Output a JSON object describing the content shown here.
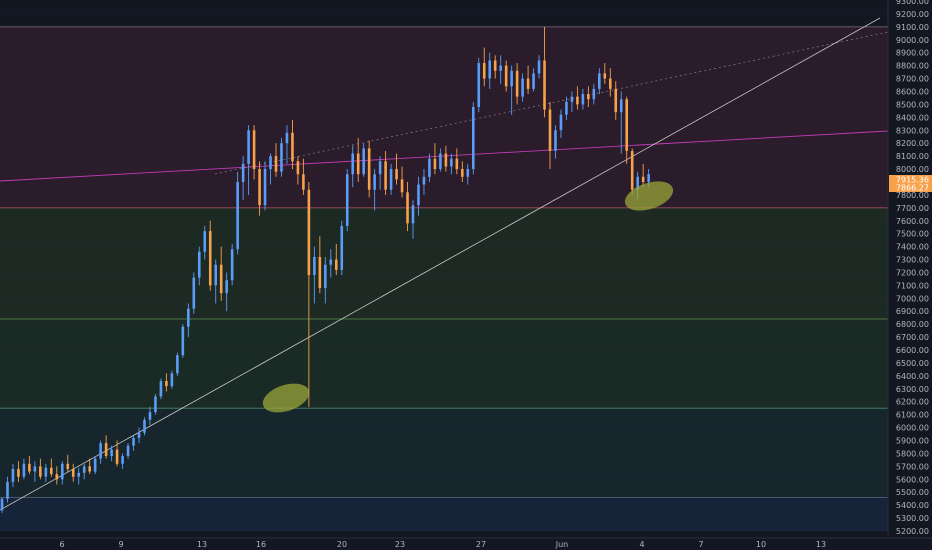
{
  "chart_data": {
    "type": "candlestick",
    "title": "",
    "xlabel": "",
    "ylabel": "",
    "ylim": [
      5200,
      9300
    ],
    "x_tick_labels": [
      "6",
      "9",
      "13",
      "16",
      "20",
      "23",
      "27",
      "Jun",
      "4",
      "7",
      "10",
      "13"
    ],
    "y_ticks": [
      5200,
      5300,
      5400,
      5500,
      5600,
      5700,
      5800,
      5900,
      6000,
      6100,
      6200,
      6300,
      6400,
      6500,
      6600,
      6700,
      6800,
      6900,
      7000,
      7100,
      7200,
      7300,
      7400,
      7500,
      7600,
      7700,
      7800,
      7900,
      8000,
      8100,
      8200,
      8300,
      8400,
      8500,
      8600,
      8700,
      8800,
      8900,
      9000,
      9100,
      9200,
      9300
    ],
    "current_price_tags": [
      "7915.36",
      "7866.27"
    ],
    "zones": [
      {
        "from": 7700,
        "to": 9100,
        "color": "#2a1c2a"
      },
      {
        "from": 6840,
        "to": 7700,
        "color": "#1d2a23"
      },
      {
        "from": 6150,
        "to": 6840,
        "color": "#1a2a24"
      },
      {
        "from": 5460,
        "to": 6150,
        "color": "#17262d"
      },
      {
        "from": 5200,
        "to": 5460,
        "color": "#172339"
      }
    ],
    "levels": [
      9100,
      7700,
      6840,
      6150,
      5460
    ],
    "colors": {
      "up": "#5b9cf6",
      "down": "#f7a14a",
      "trend": "#c8c8c8",
      "magenta": "#c23bb6",
      "highlight": "#9aa63a"
    },
    "candles": [
      [
        0,
        5360,
        5460,
        5340,
        5450
      ],
      [
        1,
        5450,
        5620,
        5420,
        5580
      ],
      [
        2,
        5580,
        5720,
        5540,
        5680
      ],
      [
        3,
        5680,
        5740,
        5580,
        5620
      ],
      [
        4,
        5620,
        5760,
        5600,
        5720
      ],
      [
        5,
        5720,
        5780,
        5640,
        5660
      ],
      [
        6,
        5660,
        5740,
        5580,
        5700
      ],
      [
        7,
        5700,
        5760,
        5600,
        5620
      ],
      [
        8,
        5620,
        5720,
        5580,
        5690
      ],
      [
        9,
        5690,
        5760,
        5620,
        5640
      ],
      [
        10,
        5640,
        5700,
        5560,
        5600
      ],
      [
        11,
        5600,
        5740,
        5560,
        5720
      ],
      [
        12,
        5720,
        5790,
        5660,
        5680
      ],
      [
        13,
        5680,
        5720,
        5580,
        5620
      ],
      [
        14,
        5620,
        5690,
        5560,
        5650
      ],
      [
        15,
        5650,
        5720,
        5600,
        5700
      ],
      [
        16,
        5700,
        5760,
        5640,
        5660
      ],
      [
        17,
        5660,
        5780,
        5640,
        5760
      ],
      [
        18,
        5760,
        5900,
        5720,
        5880
      ],
      [
        19,
        5880,
        5940,
        5760,
        5780
      ],
      [
        20,
        5780,
        5860,
        5740,
        5830
      ],
      [
        21,
        5830,
        5900,
        5700,
        5720
      ],
      [
        22,
        5720,
        5800,
        5680,
        5780
      ],
      [
        23,
        5780,
        5880,
        5760,
        5860
      ],
      [
        24,
        5860,
        5940,
        5820,
        5920
      ],
      [
        25,
        5920,
        6000,
        5880,
        5960
      ],
      [
        26,
        5960,
        6080,
        5940,
        6060
      ],
      [
        27,
        6060,
        6160,
        6020,
        6120
      ],
      [
        28,
        6120,
        6260,
        6100,
        6240
      ],
      [
        29,
        6240,
        6380,
        6220,
        6360
      ],
      [
        30,
        6360,
        6420,
        6280,
        6320
      ],
      [
        31,
        6320,
        6440,
        6300,
        6420
      ],
      [
        32,
        6420,
        6580,
        6400,
        6560
      ],
      [
        33,
        6560,
        6800,
        6540,
        6780
      ],
      [
        34,
        6780,
        6960,
        6700,
        6920
      ],
      [
        35,
        6920,
        7200,
        6880,
        7160
      ],
      [
        36,
        7160,
        7400,
        7100,
        7360
      ],
      [
        37,
        7360,
        7560,
        7300,
        7520
      ],
      [
        38,
        7520,
        7600,
        7060,
        7100
      ],
      [
        39,
        7100,
        7300,
        6960,
        7260
      ],
      [
        40,
        7260,
        7400,
        6980,
        7040
      ],
      [
        41,
        7040,
        7200,
        6900,
        7140
      ],
      [
        42,
        7140,
        7420,
        7100,
        7380
      ],
      [
        43,
        7380,
        7980,
        7340,
        7900
      ],
      [
        44,
        7900,
        8100,
        7760,
        8040
      ],
      [
        45,
        8040,
        8340,
        7800,
        8300
      ],
      [
        46,
        8300,
        8340,
        7920,
        8000
      ],
      [
        47,
        8000,
        8060,
        7640,
        7720
      ],
      [
        48,
        7720,
        8060,
        7680,
        8000
      ],
      [
        49,
        8000,
        8120,
        7880,
        8100
      ],
      [
        50,
        8100,
        8200,
        7940,
        7980
      ],
      [
        51,
        7980,
        8240,
        7940,
        8200
      ],
      [
        52,
        8200,
        8340,
        8040,
        8280
      ],
      [
        53,
        8280,
        8380,
        8000,
        8060
      ],
      [
        54,
        8060,
        8100,
        7880,
        7960
      ],
      [
        55,
        7960,
        8080,
        7800,
        7840
      ],
      [
        56,
        7840,
        7900,
        6160,
        7180
      ],
      [
        57,
        7180,
        7400,
        6960,
        7320
      ],
      [
        58,
        7320,
        7480,
        7040,
        7080
      ],
      [
        59,
        7080,
        7320,
        6960,
        7260
      ],
      [
        60,
        7260,
        7380,
        7160,
        7300
      ],
      [
        61,
        7300,
        7420,
        7180,
        7220
      ],
      [
        62,
        7220,
        7600,
        7180,
        7560
      ],
      [
        63,
        7560,
        8000,
        7520,
        7960
      ],
      [
        64,
        7960,
        8180,
        7860,
        8120
      ],
      [
        65,
        8120,
        8240,
        7900,
        7960
      ],
      [
        66,
        7960,
        8200,
        7940,
        8160
      ],
      [
        67,
        8160,
        8220,
        7780,
        7840
      ],
      [
        68,
        7840,
        8000,
        7680,
        7960
      ],
      [
        69,
        7960,
        8100,
        7840,
        8060
      ],
      [
        70,
        8060,
        8140,
        7800,
        7840
      ],
      [
        71,
        7840,
        8040,
        7800,
        8000
      ],
      [
        72,
        8000,
        8120,
        7880,
        7920
      ],
      [
        73,
        7920,
        8020,
        7780,
        7820
      ],
      [
        74,
        7820,
        7900,
        7520,
        7580
      ],
      [
        75,
        7580,
        7760,
        7460,
        7720
      ],
      [
        76,
        7720,
        7940,
        7640,
        7880
      ],
      [
        77,
        7880,
        8000,
        7800,
        7940
      ],
      [
        78,
        7940,
        8120,
        7900,
        8080
      ],
      [
        79,
        8080,
        8200,
        7960,
        8000
      ],
      [
        80,
        8000,
        8160,
        7980,
        8120
      ],
      [
        81,
        8120,
        8180,
        7980,
        8020
      ],
      [
        82,
        8020,
        8120,
        7960,
        8080
      ],
      [
        83,
        8080,
        8160,
        7960,
        8000
      ],
      [
        84,
        8000,
        8060,
        7900,
        7940
      ],
      [
        85,
        7940,
        8040,
        7880,
        8000
      ],
      [
        86,
        8000,
        8520,
        7960,
        8480
      ],
      [
        87,
        8480,
        8860,
        8440,
        8820
      ],
      [
        88,
        8820,
        8940,
        8640,
        8700
      ],
      [
        89,
        8700,
        8900,
        8620,
        8840
      ],
      [
        90,
        8840,
        8880,
        8700,
        8760
      ],
      [
        91,
        8760,
        8880,
        8660,
        8800
      ],
      [
        92,
        8800,
        8840,
        8600,
        8640
      ],
      [
        93,
        8640,
        8800,
        8420,
        8760
      ],
      [
        94,
        8760,
        8820,
        8500,
        8560
      ],
      [
        95,
        8560,
        8740,
        8520,
        8700
      ],
      [
        96,
        8700,
        8800,
        8580,
        8620
      ],
      [
        97,
        8620,
        8780,
        8600,
        8740
      ],
      [
        98,
        8740,
        8880,
        8700,
        8840
      ],
      [
        99,
        8840,
        9100,
        8400,
        8460
      ],
      [
        100,
        8460,
        8520,
        8000,
        8140
      ],
      [
        101,
        8140,
        8340,
        8080,
        8300
      ],
      [
        102,
        8300,
        8460,
        8240,
        8420
      ],
      [
        103,
        8420,
        8560,
        8380,
        8520
      ],
      [
        104,
        8520,
        8600,
        8440,
        8560
      ],
      [
        105,
        8560,
        8640,
        8460,
        8500
      ],
      [
        106,
        8500,
        8620,
        8460,
        8580
      ],
      [
        107,
        8580,
        8640,
        8480,
        8540
      ],
      [
        108,
        8540,
        8660,
        8500,
        8620
      ],
      [
        109,
        8620,
        8780,
        8580,
        8740
      ],
      [
        110,
        8740,
        8820,
        8660,
        8700
      ],
      [
        111,
        8700,
        8780,
        8560,
        8620
      ],
      [
        112,
        8620,
        8680,
        8380,
        8440
      ],
      [
        113,
        8440,
        8600,
        8120,
        8540
      ],
      [
        114,
        8540,
        8560,
        8040,
        8140
      ],
      [
        115,
        8140,
        8160,
        7800,
        7840
      ],
      [
        116,
        7840,
        7980,
        7760,
        7940
      ],
      [
        117,
        7940,
        8040,
        7860,
        7900
      ],
      [
        118,
        7900,
        8000,
        7860,
        7960
      ]
    ]
  }
}
